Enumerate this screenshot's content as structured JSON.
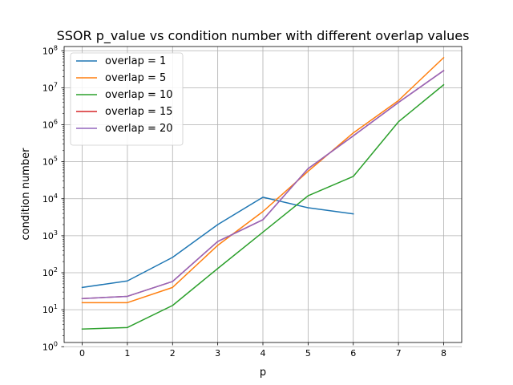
{
  "chart_data": {
    "type": "line",
    "title": "SSOR p_value vs condition number with different overlap values",
    "xlabel": "p",
    "ylabel": "condition number",
    "x": [
      0,
      1,
      2,
      3,
      4,
      5,
      6,
      7,
      8
    ],
    "xlim": [
      -0.4,
      8.4
    ],
    "xticks": [
      "0",
      "1",
      "2",
      "3",
      "4",
      "5",
      "6",
      "7",
      "8"
    ],
    "yscale": "log",
    "ylim": [
      1.3,
      130000000
    ],
    "yticks": [
      {
        "exp": "0",
        "value": 1
      },
      {
        "exp": "1",
        "value": 10
      },
      {
        "exp": "2",
        "value": 100
      },
      {
        "exp": "3",
        "value": 1000
      },
      {
        "exp": "4",
        "value": 10000
      },
      {
        "exp": "5",
        "value": 100000
      },
      {
        "exp": "6",
        "value": 1000000
      },
      {
        "exp": "7",
        "value": 10000000
      },
      {
        "exp": "8",
        "value": 100000000
      }
    ],
    "ytick_base": "10",
    "grid": true,
    "legend_position": "top-left",
    "series": [
      {
        "name": "overlap = 1",
        "color": "#1f77b4",
        "values": [
          40,
          60,
          260,
          2000,
          11000,
          5700,
          3900,
          null,
          null
        ]
      },
      {
        "name": "overlap = 5",
        "color": "#ff7f0e",
        "values": [
          15.5,
          15.5,
          40,
          550,
          4500,
          55000,
          600000,
          4500000,
          65000000
        ]
      },
      {
        "name": "overlap = 10",
        "color": "#2ca02c",
        "values": [
          3,
          3.3,
          13,
          130,
          1250,
          12000,
          40000,
          1200000,
          12000000
        ]
      },
      {
        "name": "overlap = 15",
        "color": "#d62728",
        "values": [
          20,
          23,
          58,
          700,
          2700,
          65000,
          500000,
          4000000,
          29000000
        ]
      },
      {
        "name": "overlap = 20",
        "color": "#9467bd",
        "values": [
          20,
          23,
          58,
          700,
          2700,
          65000,
          500000,
          4000000,
          29000000
        ]
      }
    ]
  }
}
